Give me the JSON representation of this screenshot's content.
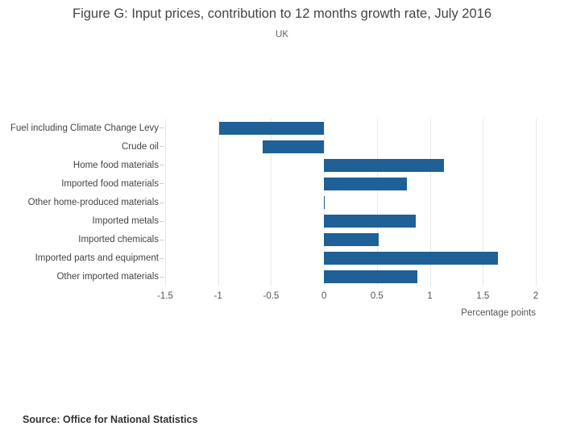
{
  "header": {
    "title": "Figure G: Input prices, contribution to 12 months growth rate, July 2016",
    "subtitle": "UK"
  },
  "source": {
    "label": "Source: Office for National Statistics"
  },
  "chart_data": {
    "type": "bar",
    "orientation": "horizontal",
    "title": "Figure G: Input prices, contribution to 12 months growth rate, July 2016",
    "subtitle": "UK",
    "categories": [
      "Fuel including Climate Change Levy",
      "Crude oil",
      "Home food materials",
      "Imported food materials",
      "Other home-produced materials",
      "Imported metals",
      "Imported chemicals",
      "Imported parts and equipment",
      "Other imported materials"
    ],
    "values": [
      -0.99,
      -0.58,
      1.13,
      0.78,
      0.01,
      0.87,
      0.52,
      1.64,
      0.88
    ],
    "xlabel": "Percentage points",
    "xlim": [
      -1.5,
      2
    ],
    "xticks": [
      -1.5,
      -1,
      -0.5,
      0,
      0.5,
      1,
      1.5,
      2
    ],
    "grid": true,
    "legend": "none",
    "bar_color": "#1f6096",
    "gridline_color": "#e8e8e8"
  }
}
